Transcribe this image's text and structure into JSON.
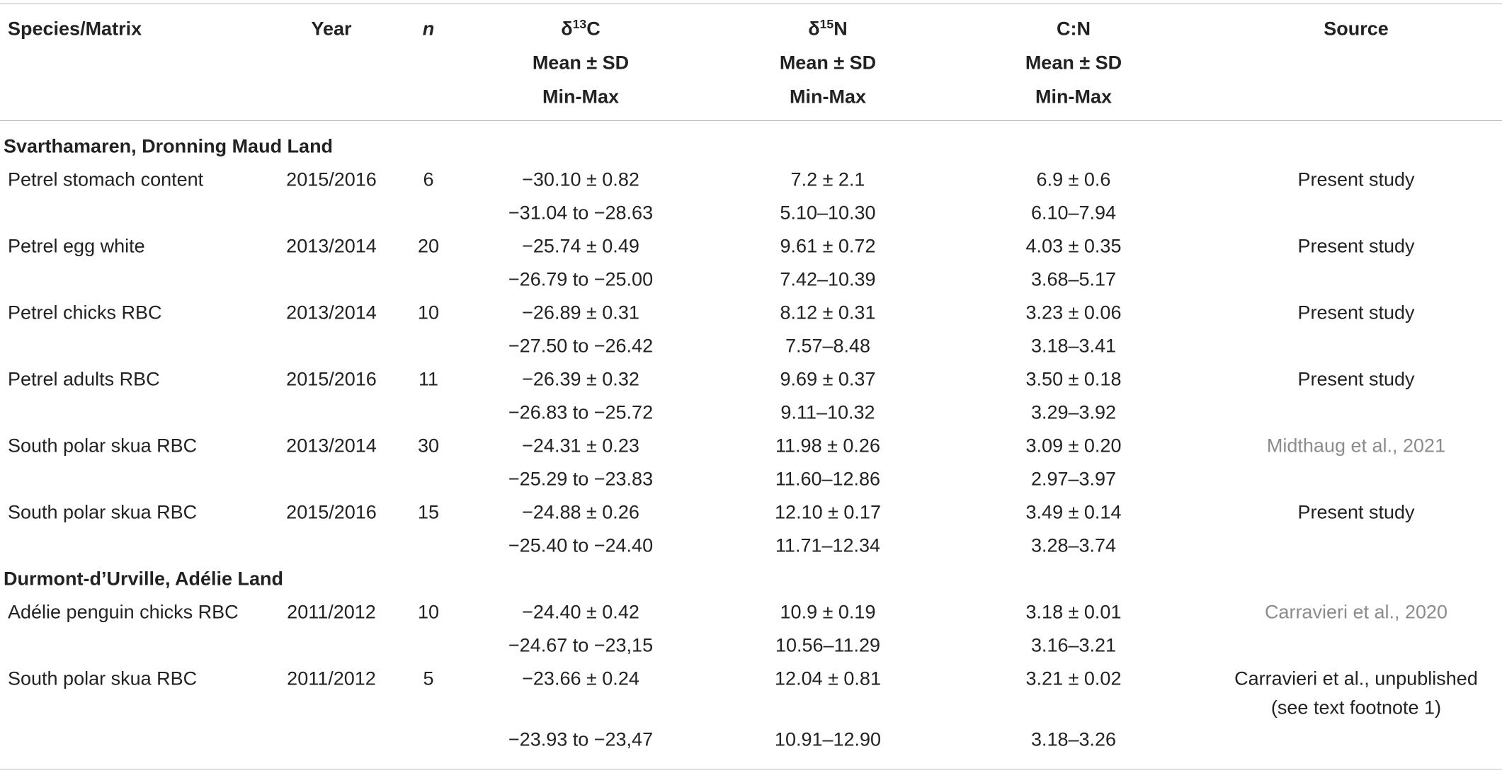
{
  "table": {
    "header": {
      "species": "Species/Matrix",
      "year": "Year",
      "n": "n",
      "d13c": {
        "symbol": "δ",
        "isotope": "13",
        "element": "C",
        "lines": [
          "Mean ± SD",
          "Min-Max"
        ]
      },
      "d15n": {
        "symbol": "δ",
        "isotope": "15",
        "element": "N",
        "lines": [
          "Mean ± SD",
          "Min-Max"
        ]
      },
      "cn": {
        "label": "C:N",
        "lines": [
          "Mean ± SD",
          "Min-Max"
        ]
      },
      "source": "Source"
    },
    "sections": [
      {
        "title": "Svarthamaren, Dronning Maud Land",
        "rows": [
          {
            "species": "Petrel stomach content",
            "year": "2015/2016",
            "n": "6",
            "d13c": [
              "−30.10 ± 0.82",
              "−31.04 to −28.63"
            ],
            "d15n": [
              "7.2 ± 2.1",
              "5.10–10.30"
            ],
            "cn": [
              "6.9 ± 0.6",
              "6.10–7.94"
            ],
            "source": [
              "Present study"
            ]
          },
          {
            "species": "Petrel egg white",
            "year": "2013/2014",
            "n": "20",
            "d13c": [
              "−25.74 ± 0.49",
              "−26.79 to −25.00"
            ],
            "d15n": [
              "9.61 ± 0.72",
              "7.42–10.39"
            ],
            "cn": [
              "4.03 ± 0.35",
              "3.68–5.17"
            ],
            "source": [
              "Present study"
            ]
          },
          {
            "species": "Petrel chicks RBC",
            "year": "2013/2014",
            "n": "10",
            "d13c": [
              "−26.89 ± 0.31",
              "−27.50 to −26.42"
            ],
            "d15n": [
              "8.12 ± 0.31",
              "7.57–8.48"
            ],
            "cn": [
              "3.23 ± 0.06",
              "3.18–3.41"
            ],
            "source": [
              "Present study"
            ]
          },
          {
            "species": "Petrel adults RBC",
            "year": "2015/2016",
            "n": "11",
            "d13c": [
              "−26.39 ± 0.32",
              "−26.83 to −25.72"
            ],
            "d15n": [
              "9.69 ± 0.37",
              "9.11–10.32"
            ],
            "cn": [
              "3.50 ± 0.18",
              "3.29–3.92"
            ],
            "source": [
              "Present study"
            ]
          },
          {
            "species": "South polar skua RBC",
            "year": "2013/2014",
            "n": "30",
            "d13c": [
              "−24.31 ± 0.23",
              "−25.29 to −23.83"
            ],
            "d15n": [
              "11.98 ± 0.26",
              "11.60–12.86"
            ],
            "cn": [
              "3.09 ± 0.20",
              "2.97–3.97"
            ],
            "source": [
              "Midthaug et al., 2021"
            ],
            "source_color": "#8c8c8c"
          },
          {
            "species": "South polar skua RBC",
            "year": "2015/2016",
            "n": "15",
            "d13c": [
              "−24.88 ± 0.26",
              "−25.40 to −24.40"
            ],
            "d15n": [
              "12.10 ± 0.17",
              "11.71–12.34"
            ],
            "cn": [
              "3.49 ± 0.14",
              "3.28–3.74"
            ],
            "source": [
              "Present study"
            ]
          }
        ]
      },
      {
        "title": "Durmont-d’Urville, Adélie Land",
        "rows": [
          {
            "species": "Adélie penguin chicks RBC",
            "year": "2011/2012",
            "n": "10",
            "d13c": [
              "−24.40 ± 0.42",
              "−24.67 to −23,15"
            ],
            "d15n": [
              "10.9 ± 0.19",
              "10.56–11.29"
            ],
            "cn": [
              "3.18 ± 0.01",
              "3.16–3.21"
            ],
            "source": [
              "Carravieri et al., 2020"
            ],
            "source_color": "#8c8c8c"
          },
          {
            "species": "South polar skua RBC",
            "year": "2011/2012",
            "n": "5",
            "d13c": [
              "−23.66 ± 0.24",
              "−23.93 to −23,47"
            ],
            "d15n": [
              "12.04 ± 0.81",
              "10.91–12.90"
            ],
            "cn": [
              "3.21 ± 0.02",
              "3.18–3.26"
            ],
            "source": [
              "Carravieri et al., unpublished",
              "(see text footnote 1)"
            ]
          }
        ]
      }
    ]
  }
}
